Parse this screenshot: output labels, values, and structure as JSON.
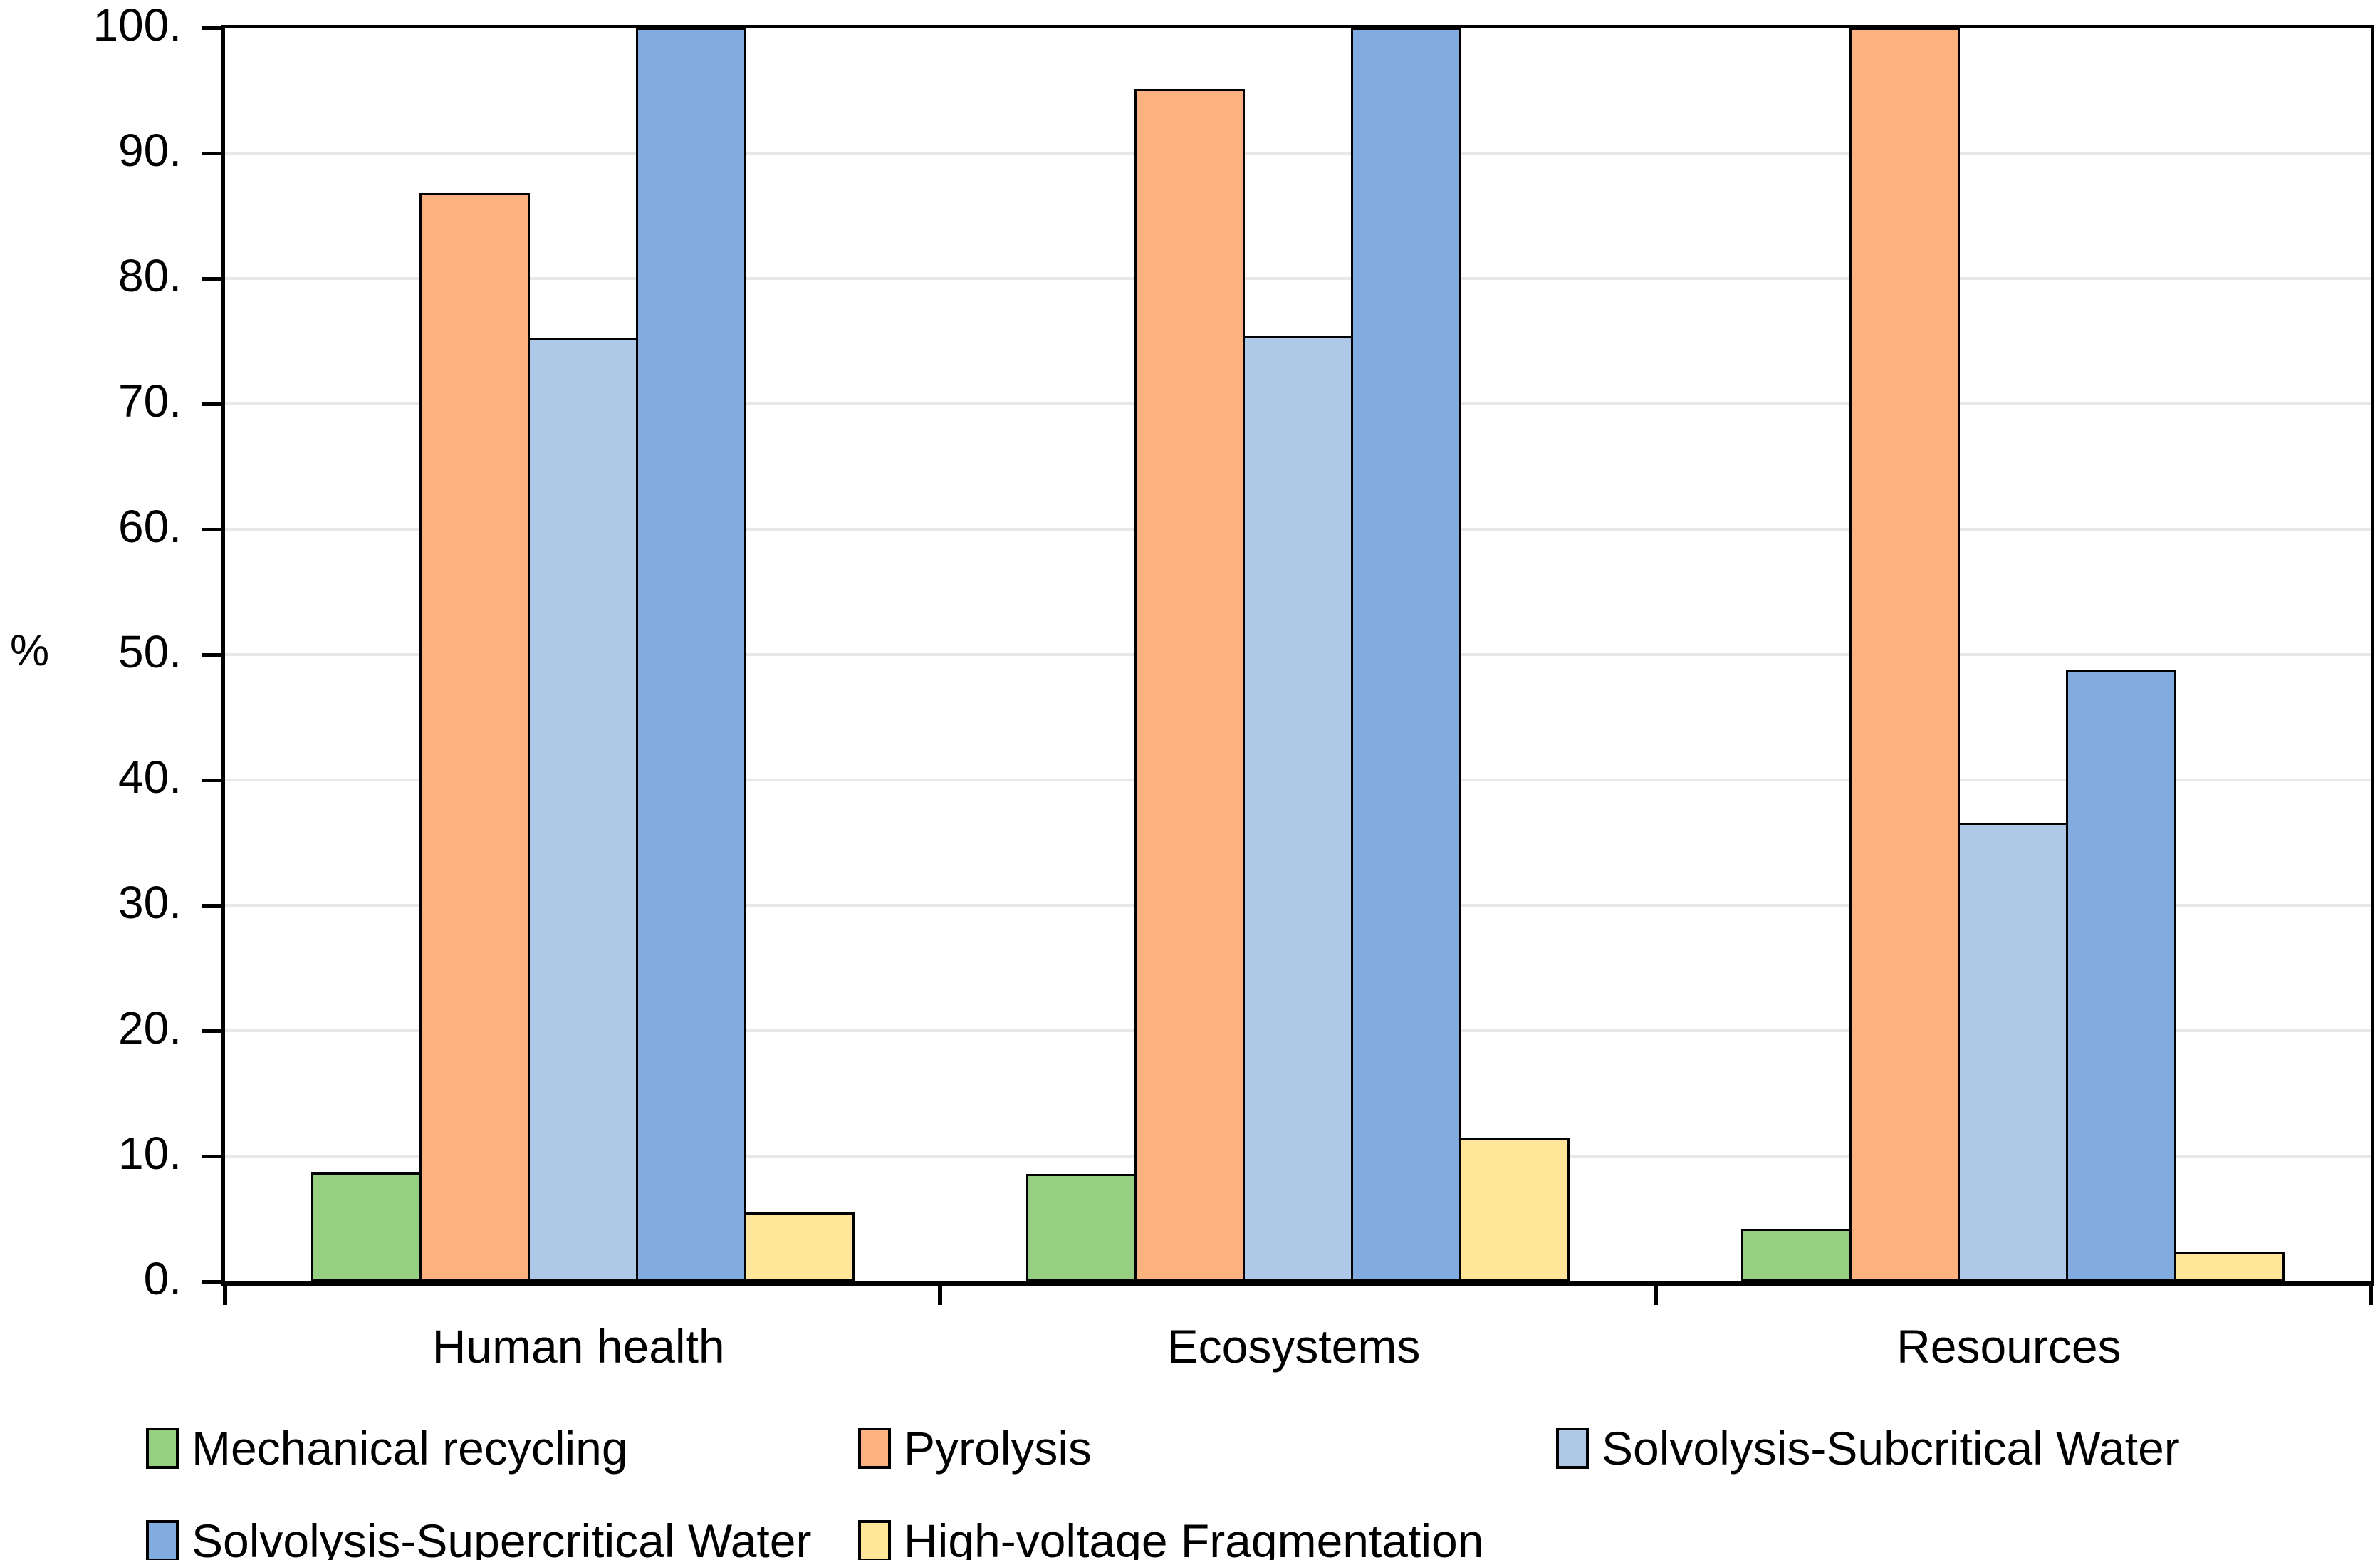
{
  "chart_data": {
    "type": "bar",
    "title": "",
    "ylabel": "%",
    "xlabel": "",
    "ylim": [
      0,
      100
    ],
    "grid": "horizontal",
    "ytick_values": [
      0,
      10,
      20,
      30,
      40,
      50,
      60,
      70,
      80,
      90,
      100
    ],
    "ytick_labels": [
      "0.",
      "10.",
      "20.",
      "30.",
      "40.",
      "50.",
      "60.",
      "70.",
      "80.",
      "90.",
      "100."
    ],
    "categories": [
      "Human health",
      "Ecosystems",
      "Resources"
    ],
    "series": [
      {
        "name": "Mechanical recycling",
        "color": "#96CE82",
        "values": [
          8.7,
          8.6,
          4.2
        ]
      },
      {
        "name": "Pyrolysis",
        "color": "#FCB17E",
        "values": [
          86.8,
          95.1,
          100
        ]
      },
      {
        "name": "Solvolysis-Subcritical Water",
        "color": "#AEC9E8",
        "values": [
          75.2,
          75.4,
          36.6
        ]
      },
      {
        "name": "Solvolysis-Supercritical Water",
        "color": "#82ACDF",
        "values": [
          100,
          100,
          48.8
        ]
      },
      {
        "name": "High-voltage Fragmentation",
        "color": "#FFE699",
        "values": [
          5.5,
          11.5,
          2.4
        ]
      }
    ],
    "legend": {
      "position": "bottom-left",
      "rows": [
        [
          0,
          1,
          2
        ],
        [
          3,
          4
        ]
      ]
    }
  }
}
